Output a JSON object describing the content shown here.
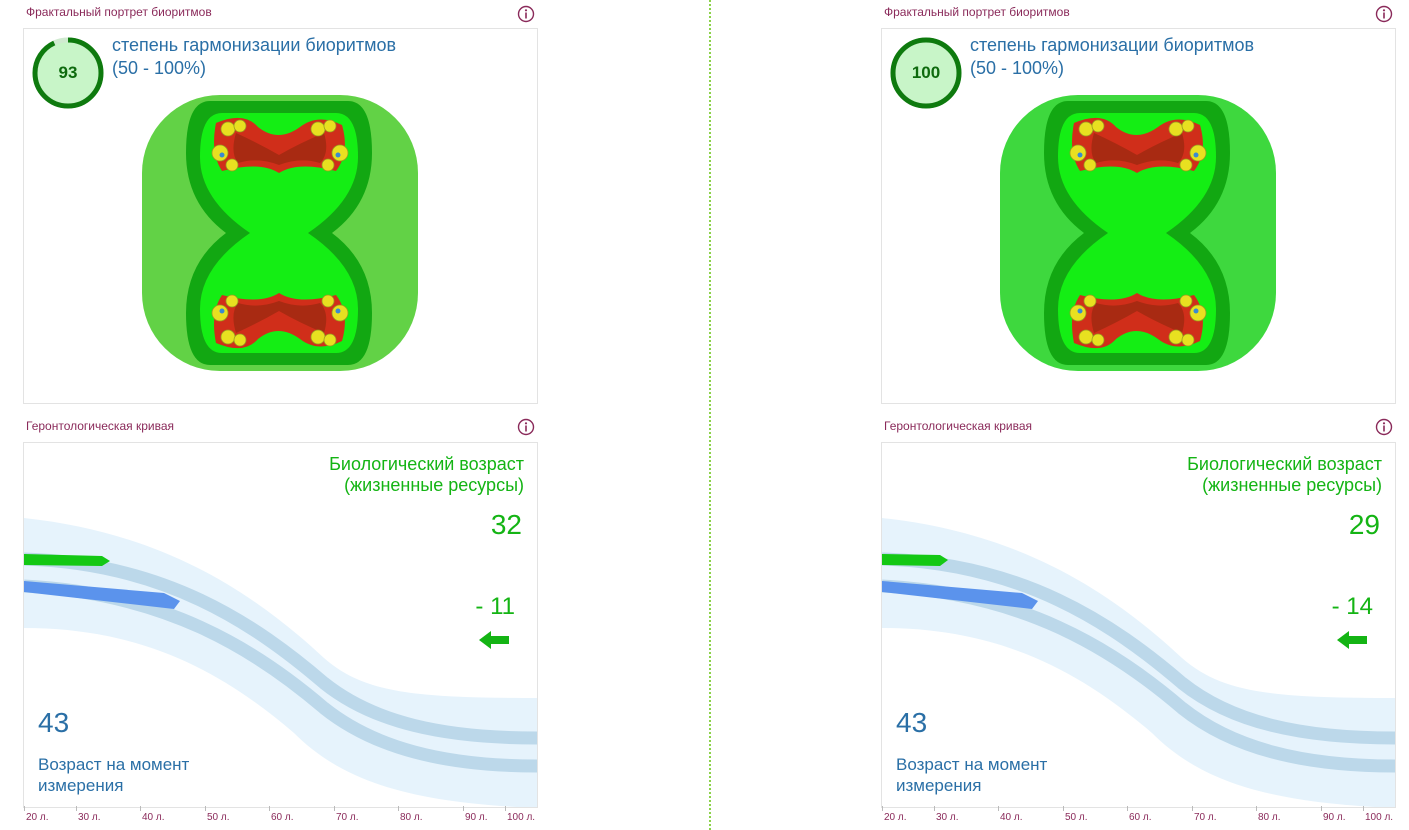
{
  "colors": {
    "bio_green": "#14b414",
    "blue_text": "#2a6fa6",
    "title_purple": "#8a2a5a",
    "divider": "#8cd24a"
  },
  "icons": {
    "info": "info-circle-icon",
    "arrow": "arrow-left-icon"
  },
  "panels": [
    {
      "fractal_title": "Фрактальный портрет биоритмов",
      "gauge_value": "93",
      "gauge_progress": 0.93,
      "harmonization_title": "степень гармонизации биоритмов",
      "harmonization_range": "(50 - 100%)",
      "geronto_title": "Геронтологическая кривая",
      "bio_age_title_line1": "Биологический возраст",
      "bio_age_title_line2": "(жизненные ресурсы)",
      "bio_age_value": "32",
      "difference": "- 11",
      "age_value": "43",
      "age_label_line1": "Возраст на момент",
      "age_label_line2": "измерения"
    },
    {
      "fractal_title": "Фрактальный портрет биоритмов",
      "gauge_value": "100",
      "gauge_progress": 1.0,
      "harmonization_title": "степень гармонизации биоритмов",
      "harmonization_range": "(50 - 100%)",
      "geronto_title": "Геронтологическая кривая",
      "bio_age_title_line1": "Биологический возраст",
      "bio_age_title_line2": "(жизненные ресурсы)",
      "bio_age_value": "29",
      "difference": "- 14",
      "age_value": "43",
      "age_label_line1": "Возраст на момент",
      "age_label_line2": "измерения"
    }
  ],
  "axis_ticks": [
    "20 л.",
    "30 л.",
    "40 л.",
    "50 л.",
    "60 л.",
    "70 л.",
    "80 л.",
    "90 л.",
    "100 л."
  ]
}
